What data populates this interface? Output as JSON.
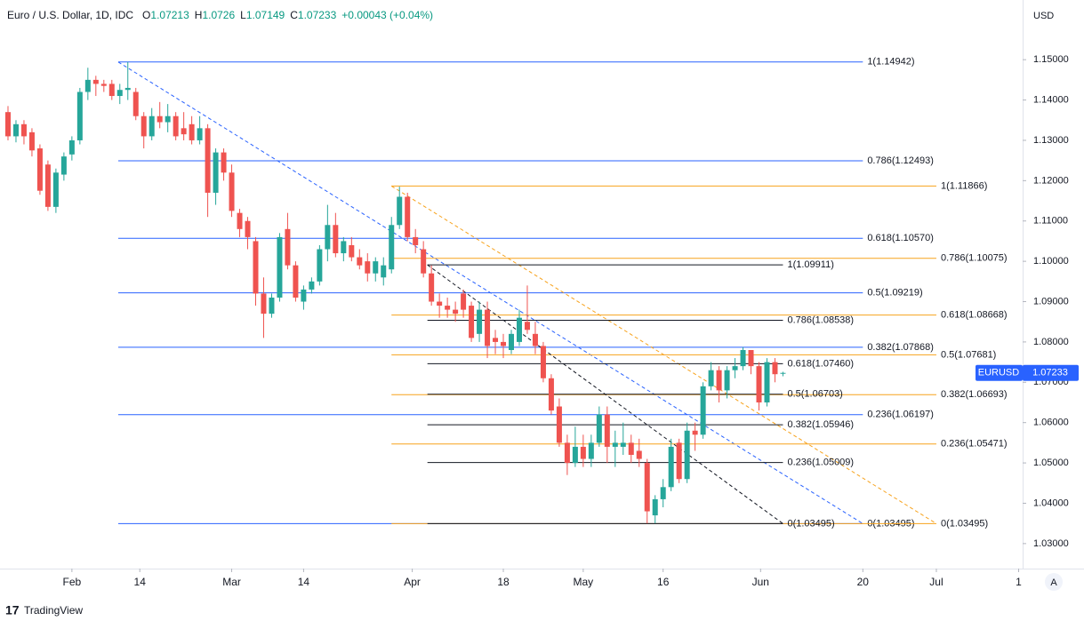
{
  "chart_data": {
    "type": "candlestick",
    "title": "Euro / U.S. Dollar, 1D, IDC",
    "ohlc_labels": [
      "O",
      "H",
      "L",
      "C"
    ],
    "change": "+0.00043 (+0.04%)",
    "currency": "USD",
    "symbol": "EURUSD",
    "auto_scale": "A",
    "brand": "TradingView",
    "up_color": "#26a69a",
    "down_color": "#ef5350",
    "grid": false,
    "xlim": [
      -9,
      119
    ],
    "ylim": [
      1.0238,
      1.1648
    ],
    "xticks": [
      {
        "value": 0,
        "label": "Feb"
      },
      {
        "value": 8.5,
        "label": "14"
      },
      {
        "value": 20,
        "label": "Mar"
      },
      {
        "value": 29,
        "label": "14"
      },
      {
        "value": 42.6,
        "label": "Apr"
      },
      {
        "value": 54,
        "label": "18"
      },
      {
        "value": 64,
        "label": "May"
      },
      {
        "value": 74,
        "label": "16"
      },
      {
        "value": 86.2,
        "label": "Jun"
      },
      {
        "value": 99,
        "label": "20"
      },
      {
        "value": 108.2,
        "label": "Jul"
      },
      {
        "value": 118.5,
        "label": "1"
      }
    ],
    "yticks": [
      {
        "value": 1.03,
        "label": "1.03000"
      },
      {
        "value": 1.04,
        "label": "1.04000"
      },
      {
        "value": 1.05,
        "label": "1.05000"
      },
      {
        "value": 1.06,
        "label": "1.06000"
      },
      {
        "value": 1.07,
        "label": "1.07000"
      },
      {
        "value": 1.08,
        "label": "1.08000"
      },
      {
        "value": 1.09,
        "label": "1.09000"
      },
      {
        "value": 1.1,
        "label": "1.10000"
      },
      {
        "value": 1.11,
        "label": "1.11000"
      },
      {
        "value": 1.12,
        "label": "1.12000"
      },
      {
        "value": 1.13,
        "label": "1.13000"
      },
      {
        "value": 1.14,
        "label": "1.14000"
      },
      {
        "value": 1.15,
        "label": "1.15000"
      }
    ],
    "candles": {
      "x": [
        -8,
        -7,
        -6,
        -5,
        -4,
        -3,
        -2,
        -1,
        0,
        1,
        2,
        3,
        4,
        5,
        6,
        7,
        8,
        9,
        10,
        11,
        12,
        13,
        14,
        15,
        16,
        17,
        18,
        19,
        20,
        21,
        22,
        23,
        24,
        25,
        26,
        27,
        28,
        29,
        30,
        31,
        32,
        33,
        34,
        35,
        36,
        37,
        38,
        39,
        40,
        41,
        42,
        43,
        44,
        45,
        46,
        47,
        48,
        49,
        50,
        51,
        52,
        53,
        54,
        55,
        56,
        57,
        58,
        59,
        60,
        61,
        62,
        63,
        64,
        65,
        66,
        67,
        68,
        69,
        70,
        71,
        72,
        73,
        74,
        75,
        76,
        77,
        78,
        79,
        80,
        81,
        82,
        83,
        84,
        85,
        86,
        87,
        88,
        89
      ],
      "open": [
        1.137,
        1.131,
        1.134,
        1.132,
        1.128,
        1.124,
        1.1135,
        1.1215,
        1.1265,
        1.13,
        1.142,
        1.145,
        1.144,
        1.144,
        1.141,
        1.1425,
        1.142,
        1.136,
        1.131,
        1.136,
        1.1345,
        1.136,
        1.133,
        1.134,
        1.13,
        1.133,
        1.117,
        1.127,
        1.122,
        1.112,
        1.11,
        1.105,
        1.092,
        1.087,
        1.091,
        1.108,
        1.099,
        1.09,
        1.093,
        1.095,
        1.103,
        1.109,
        1.102,
        1.104,
        1.101,
        1.1,
        1.097,
        1.096,
        1.098,
        1.109,
        1.116,
        1.106,
        1.103,
        1.097,
        1.09,
        1.089,
        1.088,
        1.092,
        1.089,
        1.082,
        1.088,
        1.081,
        1.08,
        1.078,
        1.08,
        1.085,
        1.082,
        1.079,
        1.071,
        1.064,
        1.055,
        1.05,
        1.054,
        1.051,
        1.055,
        1.062,
        1.054,
        1.054,
        1.055,
        1.053,
        1.05,
        1.037,
        1.041,
        1.044,
        1.055,
        1.046,
        1.058,
        1.057,
        1.069,
        1.073,
        1.068,
        1.073,
        1.074,
        1.078,
        1.074,
        1.065,
        1.075,
        1.07213
      ],
      "high": [
        1.1385,
        1.135,
        1.135,
        1.133,
        1.129,
        1.125,
        1.123,
        1.127,
        1.131,
        1.143,
        1.148,
        1.146,
        1.145,
        1.145,
        1.144,
        1.14942,
        1.143,
        1.137,
        1.138,
        1.1395,
        1.139,
        1.137,
        1.137,
        1.136,
        1.136,
        1.134,
        1.128,
        1.128,
        1.124,
        1.113,
        1.111,
        1.106,
        1.096,
        1.092,
        1.107,
        1.112,
        1.1,
        1.094,
        1.096,
        1.104,
        1.114,
        1.112,
        1.106,
        1.106,
        1.103,
        1.102,
        1.101,
        1.101,
        1.111,
        1.1185,
        1.117,
        1.108,
        1.105,
        1.099,
        1.092,
        1.091,
        1.09,
        1.093,
        1.09,
        1.09,
        1.09,
        1.083,
        1.082,
        1.083,
        1.088,
        1.094,
        1.085,
        1.08,
        1.072,
        1.066,
        1.057,
        1.059,
        1.057,
        1.057,
        1.064,
        1.064,
        1.058,
        1.06,
        1.057,
        1.056,
        1.051,
        1.042,
        1.046,
        1.056,
        1.056,
        1.06,
        1.06,
        1.07,
        1.075,
        1.074,
        1.074,
        1.076,
        1.0787,
        1.078,
        1.075,
        1.076,
        1.076,
        1.0726
      ],
      "low": [
        1.13,
        1.1295,
        1.129,
        1.126,
        1.1165,
        1.1125,
        1.112,
        1.12,
        1.125,
        1.129,
        1.14,
        1.141,
        1.142,
        1.14,
        1.139,
        1.14,
        1.135,
        1.128,
        1.13,
        1.133,
        1.132,
        1.13,
        1.13,
        1.129,
        1.129,
        1.111,
        1.114,
        1.12,
        1.111,
        1.106,
        1.103,
        1.089,
        1.081,
        1.086,
        1.09,
        1.098,
        1.09,
        1.088,
        1.092,
        1.094,
        1.1,
        1.101,
        1.1,
        1.1,
        1.098,
        1.095,
        1.095,
        1.094,
        1.097,
        1.108,
        1.105,
        1.102,
        1.096,
        1.089,
        1.086,
        1.086,
        1.085,
        1.086,
        1.08,
        1.08,
        1.076,
        1.077,
        1.076,
        1.077,
        1.079,
        1.082,
        1.077,
        1.07,
        1.062,
        1.054,
        1.047,
        1.049,
        1.049,
        1.049,
        1.054,
        1.05,
        1.049,
        1.052,
        1.05,
        1.049,
        1.035,
        1.035,
        1.039,
        1.043,
        1.045,
        1.045,
        1.053,
        1.056,
        1.068,
        1.065,
        1.066,
        1.071,
        1.073,
        1.072,
        1.063,
        1.064,
        1.07,
        1.07149
      ],
      "close": [
        1.131,
        1.134,
        1.131,
        1.1275,
        1.1175,
        1.1135,
        1.122,
        1.126,
        1.13,
        1.142,
        1.145,
        1.144,
        1.1435,
        1.141,
        1.1425,
        1.143,
        1.136,
        1.131,
        1.136,
        1.1345,
        1.136,
        1.131,
        1.1315,
        1.13,
        1.133,
        1.117,
        1.127,
        1.122,
        1.1125,
        1.108,
        1.106,
        1.092,
        1.087,
        1.091,
        1.106,
        1.099,
        1.091,
        1.093,
        1.095,
        1.103,
        1.109,
        1.102,
        1.105,
        1.101,
        1.099,
        1.097,
        1.1,
        1.099,
        1.109,
        1.116,
        1.106,
        1.104,
        1.097,
        1.09,
        1.089,
        1.088,
        1.087,
        1.088,
        1.081,
        1.088,
        1.079,
        1.08,
        1.079,
        1.082,
        1.086,
        1.083,
        1.079,
        1.071,
        1.063,
        1.055,
        1.05,
        1.054,
        1.051,
        1.055,
        1.062,
        1.054,
        1.055,
        1.055,
        1.052,
        1.051,
        1.038,
        1.041,
        1.044,
        1.054,
        1.046,
        1.058,
        1.057,
        1.069,
        1.073,
        1.068,
        1.073,
        1.074,
        1.078,
        1.074,
        1.065,
        1.075,
        1.072,
        1.07233
      ]
    },
    "fibs": [
      {
        "color": "#2962ff",
        "x": [
          5.8,
          99
        ],
        "levels": [
          {
            "value": 1.14942,
            "label": "1(1.14942)"
          },
          {
            "value": 1.12493,
            "label": "0.786(1.12493)"
          },
          {
            "value": 1.1057,
            "label": "0.618(1.10570)"
          },
          {
            "value": 1.09219,
            "label": "0.5(1.09219)"
          },
          {
            "value": 1.07868,
            "label": "0.382(1.07868)"
          },
          {
            "value": 1.06197,
            "label": "0.236(1.06197)"
          },
          {
            "value": 1.03495,
            "label": "0(1.03495)"
          }
        ]
      },
      {
        "color": "#f7a21b",
        "x": [
          40,
          108.2
        ],
        "levels": [
          {
            "value": 1.11866,
            "label": "1(1.11866)"
          },
          {
            "value": 1.10075,
            "label": "0.786(1.10075)"
          },
          {
            "value": 1.08668,
            "label": "0.618(1.08668)"
          },
          {
            "value": 1.07681,
            "label": "0.5(1.07681)"
          },
          {
            "value": 1.06693,
            "label": "0.382(1.06693)"
          },
          {
            "value": 1.05471,
            "label": "0.236(1.05471)"
          },
          {
            "value": 1.03495,
            "label": "0(1.03495)"
          }
        ]
      },
      {
        "color": "#131722",
        "x": [
          44.5,
          89
        ],
        "levels": [
          {
            "value": 1.09911,
            "label": "1(1.09911)"
          },
          {
            "value": 1.08538,
            "label": "0.786(1.08538)"
          },
          {
            "value": 1.0746,
            "label": "0.618(1.07460)"
          },
          {
            "value": 1.06703,
            "label": "0.5(1.06703)"
          },
          {
            "value": 1.05946,
            "label": "0.382(1.05946)"
          },
          {
            "value": 1.05009,
            "label": "0.236(1.05009)"
          },
          {
            "value": 1.03495,
            "label": "0(1.03495)"
          }
        ]
      }
    ]
  }
}
